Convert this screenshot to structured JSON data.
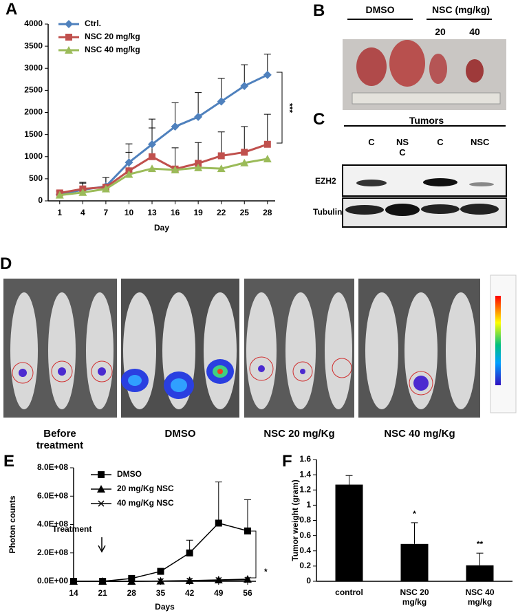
{
  "panels": {
    "A": "A",
    "B": "B",
    "C": "C",
    "D": "D",
    "E": "E",
    "F": "F"
  },
  "photo_b": {
    "groups": [
      "DMSO",
      "NSC (mg/kg)"
    ],
    "doses": [
      "20",
      "40"
    ]
  },
  "blot_c": {
    "header": "Tumors",
    "lanes": [
      "C",
      "NS C",
      "C",
      "NSC"
    ],
    "rows": [
      "EZH2",
      "Tubulin"
    ]
  },
  "imaging_d": {
    "groups": [
      "Before treatment",
      "DMSO",
      "NSC 20 mg/Kg",
      "NSC 40 mg/Kg"
    ]
  },
  "chart_data": [
    {
      "type": "line",
      "x": [
        1,
        4,
        7,
        10,
        13,
        16,
        19,
        22,
        25,
        28
      ],
      "xlim": [
        -0.5,
        29
      ],
      "xticks": [
        1,
        4,
        7,
        10,
        13,
        16,
        19,
        22,
        25,
        28
      ],
      "ylim": [
        0,
        4000
      ],
      "yticks": [
        0,
        500,
        1000,
        1500,
        2000,
        2500,
        3000,
        3500,
        4000
      ],
      "x_label": "Day",
      "legend": "upper left",
      "series": [
        {
          "name": "Ctrl.",
          "color": "#4f81bd",
          "marker": "diamond",
          "values": [
            150,
            250,
            330,
            870,
            1280,
            1680,
            1900,
            2250,
            2600,
            2850
          ],
          "errors": [
            60,
            150,
            200,
            420,
            570,
            540,
            550,
            520,
            480,
            470
          ]
        },
        {
          "name": "NSC 20 mg/kg",
          "color": "#c0504d",
          "marker": "square",
          "values": [
            180,
            270,
            310,
            680,
            1000,
            720,
            850,
            1020,
            1100,
            1280
          ],
          "errors": [
            60,
            150,
            220,
            420,
            650,
            480,
            470,
            540,
            580,
            680
          ]
        },
        {
          "name": "NSC 40 mg/kg",
          "color": "#9bbb59",
          "marker": "triangle",
          "values": [
            130,
            190,
            270,
            600,
            730,
            700,
            750,
            730,
            860,
            950
          ]
        }
      ],
      "annotations": [
        "***"
      ]
    },
    {
      "type": "line",
      "x": [
        14,
        21,
        28,
        35,
        42,
        49,
        56
      ],
      "xlim": [
        14,
        58
      ],
      "xticks": [
        14,
        21,
        28,
        35,
        42,
        49,
        56
      ],
      "ylim": [
        0,
        800000000
      ],
      "yticks": [
        {
          "value": 0,
          "label": "0.0E+00"
        },
        {
          "value": 200000000,
          "label": "2.0E+08"
        },
        {
          "value": 400000000,
          "label": "4.0E+08"
        },
        {
          "value": 600000000,
          "label": "6.0E+08"
        },
        {
          "value": 800000000,
          "label": "8.0E+08"
        }
      ],
      "x_label": "Days",
      "y_label": "Photon counts",
      "legend": "upper left",
      "series": [
        {
          "name": "DMSO",
          "color": "#000000",
          "marker": "square",
          "values": [
            0,
            0,
            20000000,
            70000000,
            200000000,
            410000000,
            355000000
          ],
          "errors": [
            0,
            0,
            5000000,
            10000000,
            90000000,
            290000000,
            220000000
          ]
        },
        {
          "name": "20 mg/Kg NSC",
          "color": "#000000",
          "marker": "triangle",
          "values": [
            0,
            0,
            0,
            2000000,
            5000000,
            10000000,
            15000000
          ]
        },
        {
          "name": "40 mg/Kg NSC",
          "color": "#000000",
          "marker": "x",
          "values": [
            0,
            0,
            0,
            1000000,
            3000000,
            8000000,
            10000000
          ]
        }
      ],
      "annotations": [
        "Treatment",
        "*"
      ]
    },
    {
      "type": "bar",
      "categories": [
        "control",
        "NSC 20 mg/kg",
        "NSC 40 mg/kg"
      ],
      "values": [
        1.27,
        0.49,
        0.21
      ],
      "errors": [
        0.12,
        0.28,
        0.16
      ],
      "color": "#000000",
      "ylim": [
        0,
        1.6
      ],
      "yticks": [
        0,
        0.2,
        0.4,
        0.6,
        0.8,
        1,
        1.2,
        1.4,
        1.6
      ],
      "y_label": "Tumor weight (gram)",
      "annotations": [
        "*",
        "**"
      ]
    }
  ]
}
